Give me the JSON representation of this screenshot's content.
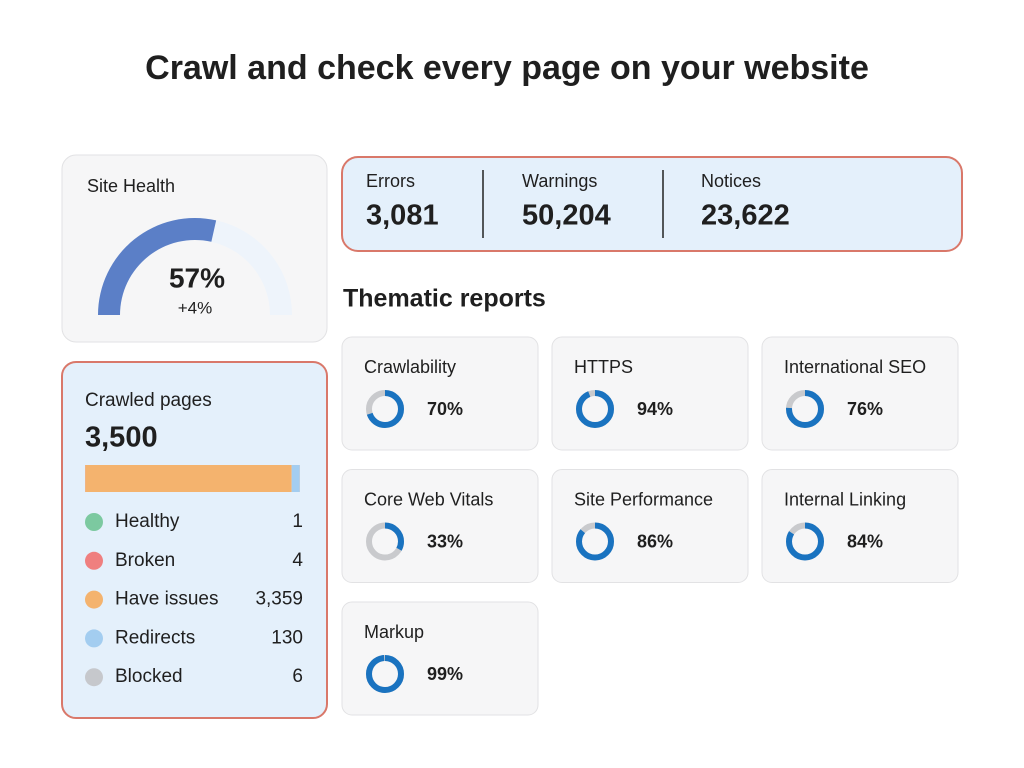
{
  "title": "Crawl and check every page on your website",
  "site_health": {
    "label": "Site Health",
    "score": {
      "value": 57,
      "label": "57%"
    },
    "change": "+4%",
    "color": "#5b7fc7",
    "change_color": "#2e9e4f"
  },
  "issues": [
    {
      "name": "Errors",
      "count": "3,081",
      "color": "#e0474c"
    },
    {
      "name": "Warnings",
      "count": "50,204",
      "color": "#f4a07a"
    },
    {
      "name": "Notices",
      "count": "23,622",
      "color": "#5b86c5"
    }
  ],
  "crawled_pages": {
    "label": "Crawled pages",
    "total": "3,500",
    "items": [
      {
        "name": "Healthy",
        "count": 1,
        "color": "#7cc9a0"
      },
      {
        "name": "Broken",
        "count": 4,
        "color": "#ef7f7f"
      },
      {
        "name": "Have issues",
        "count": {
          "value": 3359,
          "label": "3,359"
        },
        "color": "#f4b36e"
      },
      {
        "name": "Redirects",
        "count": 130,
        "color": "#a3cdf0"
      },
      {
        "name": "Blocked",
        "count": 6,
        "color": "#c6c8cc"
      }
    ]
  },
  "thematic_reports": {
    "title": "Thematic reports",
    "color": "#1a73c0",
    "reports": [
      {
        "name": "Crawlability",
        "score": {
          "value": 70,
          "label": "70%"
        }
      },
      {
        "name": "HTTPS",
        "score": {
          "value": 94,
          "label": "94%"
        }
      },
      {
        "name": "International SEO",
        "score": {
          "value": 76,
          "label": "76%"
        }
      },
      {
        "name": "Core Web Vitals",
        "score": {
          "value": 33,
          "label": "33%"
        }
      },
      {
        "name": "Site Performance",
        "score": {
          "value": 86,
          "label": "86%"
        }
      },
      {
        "name": "Internal Linking",
        "score": {
          "value": 84,
          "label": "84%"
        }
      },
      {
        "name": "Markup",
        "score": {
          "value": 99,
          "label": "99%"
        }
      }
    ]
  }
}
